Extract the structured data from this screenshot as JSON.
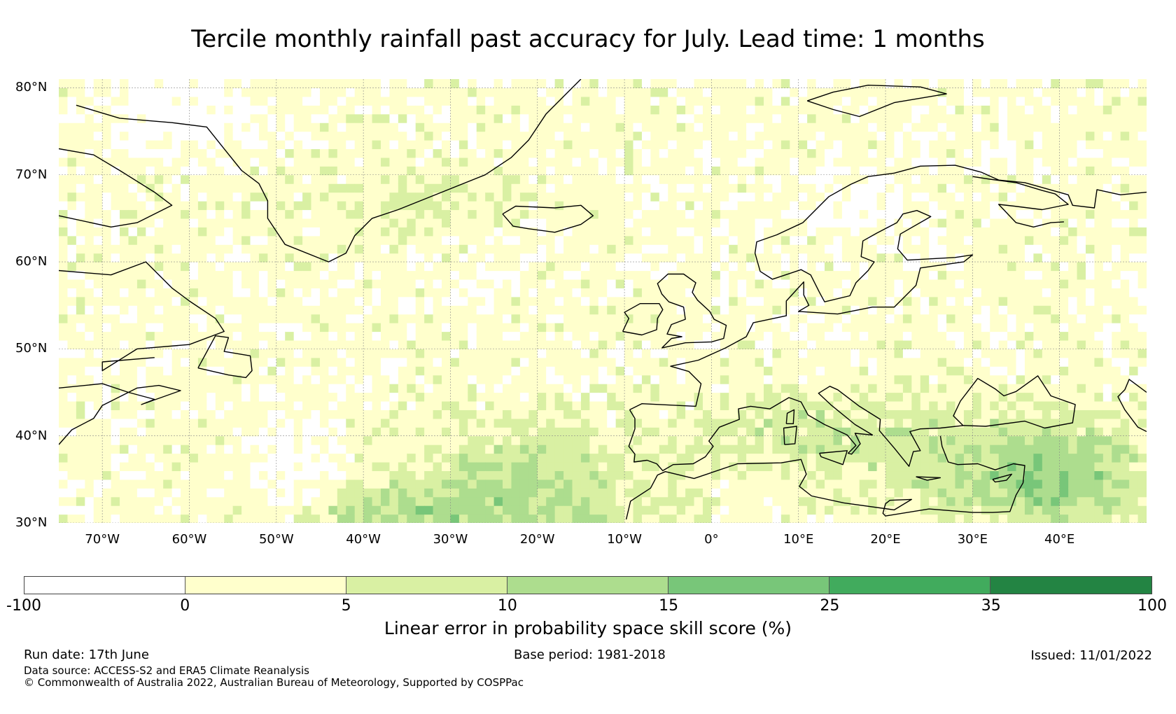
{
  "title": "Tercile monthly rainfall past accuracy for July. Lead time: 1 months",
  "map": {
    "region": "North Atlantic and Europe",
    "lon_range": [
      -75,
      50
    ],
    "lat_range": [
      30,
      81
    ],
    "grid_on": true,
    "lat_labels": [
      "80°N",
      "70°N",
      "60°N",
      "50°N",
      "40°N",
      "30°N"
    ],
    "lon_labels": [
      "70°W",
      "60°W",
      "50°W",
      "40°W",
      "30°W",
      "20°W",
      "10°W",
      "0°",
      "10°E",
      "20°E",
      "30°E",
      "40°E"
    ],
    "lat_values": [
      80,
      70,
      60,
      50,
      40,
      30
    ],
    "lon_values": [
      -70,
      -60,
      -50,
      -40,
      -30,
      -20,
      -10,
      0,
      10,
      20,
      30,
      40
    ]
  },
  "colorbar": {
    "ticks": [
      "-100",
      "0",
      "5",
      "10",
      "15",
      "25",
      "35",
      "100"
    ],
    "colors": [
      "#ffffff",
      "#ffffcc",
      "#d9f0a3",
      "#addd8e",
      "#78c679",
      "#41ab5d",
      "#238443"
    ],
    "label": "Linear error in probability space skill score (%)"
  },
  "footer": {
    "run_date": "Run date: 17th June",
    "base_period": "Base period: 1981-2018",
    "issued": "Issued: 11/01/2022",
    "data_source": "Data source: ACCESS-S2 and ERA5 Climate Reanalysis",
    "copyright": "© Commonwealth of Australia 2022, Australian Bureau of Meteorology, Supported by COSPPac"
  }
}
